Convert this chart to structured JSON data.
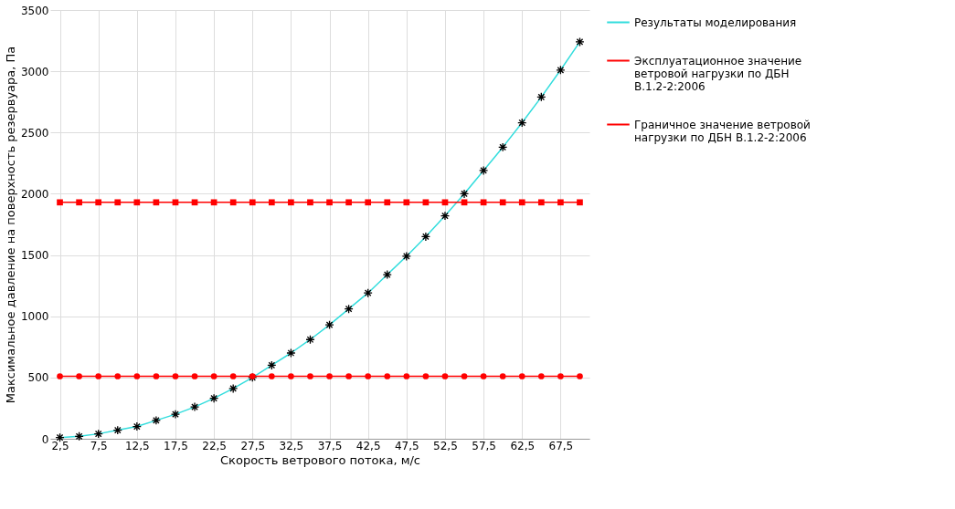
{
  "chart_data": {
    "type": "line",
    "xlabel": "Скорость ветрового потока, м/с",
    "ylabel": "Максимальное давление на поверхность резервуара, Па",
    "categories": [
      "2,5",
      null,
      "7,5",
      null,
      "12,5",
      null,
      "17,5",
      null,
      "22,5",
      null,
      "27,5",
      null,
      "32,5",
      null,
      "37,5",
      null,
      "42,5",
      null,
      "47,5",
      null,
      "52,5",
      null,
      "57,5",
      null,
      "62,5",
      null,
      "67,5",
      null
    ],
    "series": [
      {
        "name": "Результаты моделирования",
        "color": "#33dddd",
        "marker": "cross",
        "values": [
          10,
          20,
          40,
          70,
          100,
          150,
          200,
          260,
          330,
          410,
          500,
          600,
          700,
          810,
          930,
          1060,
          1190,
          1340,
          1490,
          1650,
          1820,
          2000,
          2190,
          2380,
          2580,
          2790,
          3010,
          3240
        ]
      },
      {
        "name": "Эксплуатационное значение ветровой нагрузки по ДБН В.1.2-2:2006",
        "color": "#ff0000",
        "marker": "circle",
        "values": [
          510,
          510,
          510,
          510,
          510,
          510,
          510,
          510,
          510,
          510,
          510,
          510,
          510,
          510,
          510,
          510,
          510,
          510,
          510,
          510,
          510,
          510,
          510,
          510,
          510,
          510,
          510,
          510
        ]
      },
      {
        "name": "Граничное значение ветровой нагрузки по ДБН В.1.2-2:2006",
        "color": "#ff0000",
        "marker": "square",
        "values": [
          1930,
          1930,
          1930,
          1930,
          1930,
          1930,
          1930,
          1930,
          1930,
          1930,
          1930,
          1930,
          1930,
          1930,
          1930,
          1930,
          1930,
          1930,
          1930,
          1930,
          1930,
          1930,
          1930,
          1930,
          1930,
          1930,
          1930,
          1930
        ]
      }
    ],
    "ylim": [
      0,
      3500
    ],
    "yticks": [
      0,
      500,
      1000,
      1500,
      2000,
      2500,
      3000,
      3500
    ],
    "grid": true,
    "legend": "right"
  }
}
